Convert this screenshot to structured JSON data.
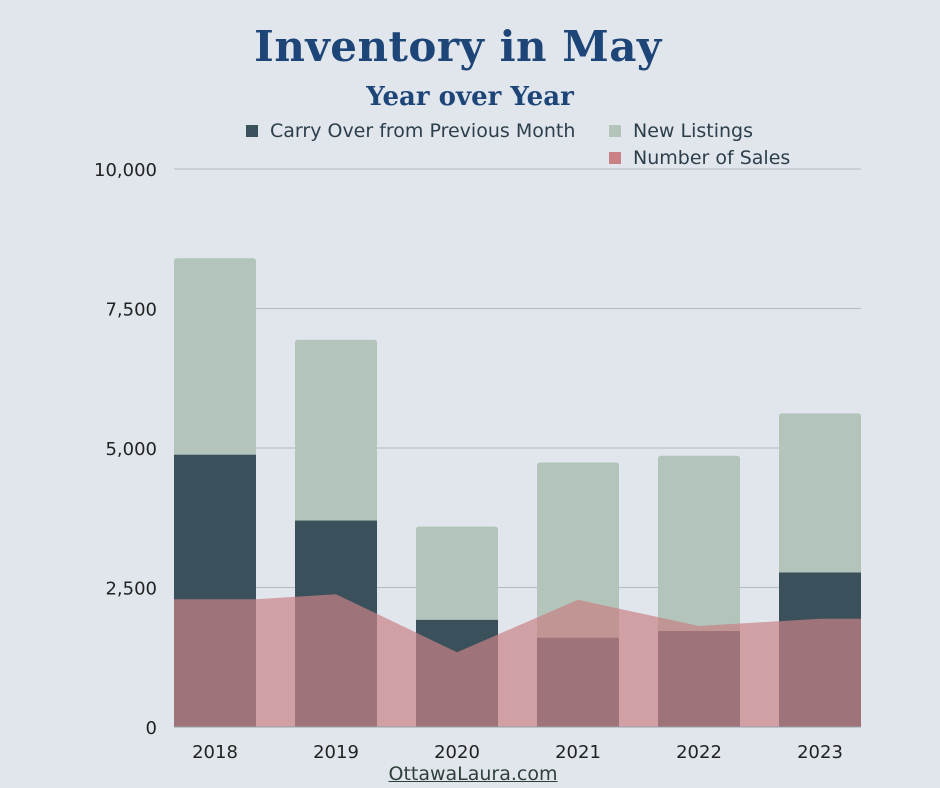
{
  "chart_data": {
    "type": "bar",
    "title": "Inventory in May",
    "subtitle": "Year over Year",
    "categories": [
      "2018",
      "2019",
      "2020",
      "2021",
      "2022",
      "2023"
    ],
    "series": [
      {
        "name": "Carry Over from Previous Month",
        "values": [
          4880,
          3700,
          1920,
          1600,
          1720,
          2770
        ],
        "color": "#3a515b",
        "mark": "bar"
      },
      {
        "name": "New Listings",
        "values": [
          3520,
          3240,
          1670,
          3140,
          3140,
          2850
        ],
        "color": "#b3c4ba",
        "mark": "bar"
      },
      {
        "name": "Number of Sales",
        "values": [
          2290,
          2380,
          1340,
          2280,
          1810,
          1940
        ],
        "color": "#c98186",
        "mark": "area"
      }
    ],
    "stacked": true,
    "ylim": [
      0,
      10000
    ],
    "yticks": [
      "0",
      "2,500",
      "5,000",
      "7,500",
      "10,000"
    ],
    "ytick_values": [
      0,
      2500,
      5000,
      7500,
      10000
    ],
    "grid": true,
    "legend_position": "top"
  },
  "footer": "OttawaLaura.com"
}
